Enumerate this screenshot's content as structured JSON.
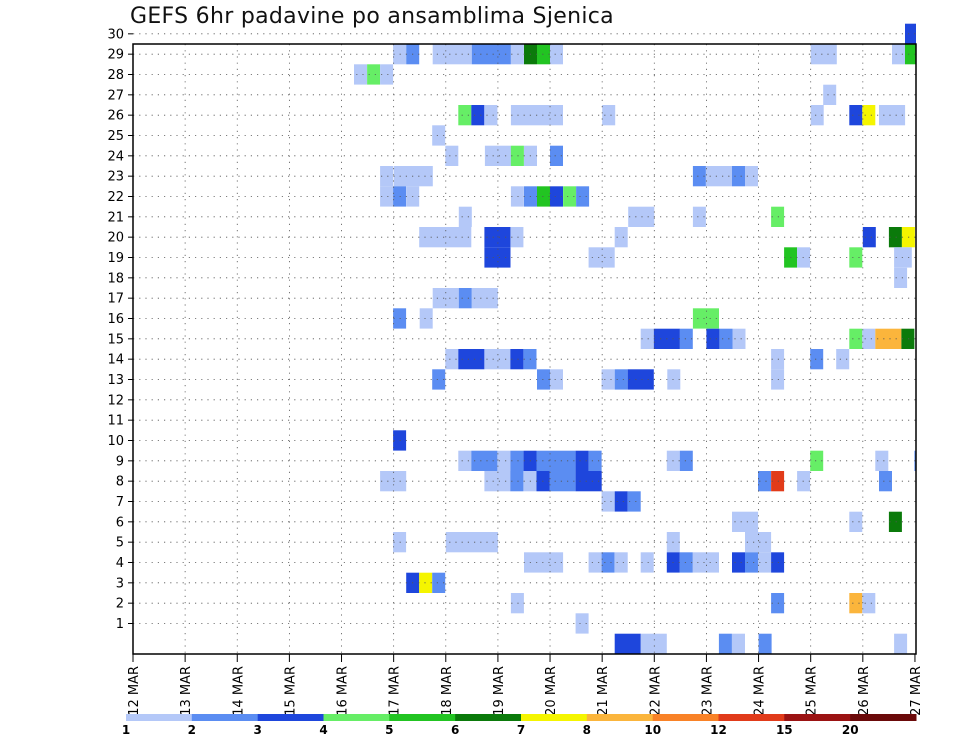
{
  "title": "GEFS 6hr padavine po ansamblima Sjenica",
  "chart_data": {
    "type": "heatmap",
    "title": "GEFS 6hr padavine po ansamblima Sjenica",
    "x_tick_labels": [
      "12 MAR",
      "13 MAR",
      "14 MAR",
      "15 MAR",
      "16 MAR",
      "17 MAR",
      "18 MAR",
      "19 MAR",
      "20 MAR",
      "21 MAR",
      "22 MAR",
      "23 MAR",
      "24 MAR",
      "25 MAR",
      "26 MAR",
      "27 MAR"
    ],
    "y_tick_labels": [
      "1",
      "2",
      "3",
      "4",
      "5",
      "6",
      "7",
      "8",
      "9",
      "10",
      "11",
      "12",
      "13",
      "14",
      "15",
      "16",
      "17",
      "18",
      "19",
      "20",
      "21",
      "22",
      "23",
      "24",
      "25",
      "26",
      "27",
      "28",
      "29",
      "30"
    ],
    "x_range_days": [
      0,
      15.2
    ],
    "y_range": [
      0,
      30
    ],
    "grid": true,
    "colorbar": {
      "boundaries": [
        "1",
        "2",
        "3",
        "4",
        "5",
        "6",
        "7",
        "8",
        "10",
        "12",
        "15",
        "20"
      ],
      "colors": [
        "#b4c8f8",
        "#5b8df2",
        "#1e46dc",
        "#66ee66",
        "#22c422",
        "#0b7a0b",
        "#f5f500",
        "#fbb53c",
        "#f98227",
        "#e13b1a",
        "#9b1313",
        "#6b0a0a"
      ]
    },
    "cells": [
      {
        "m": 30,
        "d": 14.81,
        "w": 0.25,
        "c": 3
      },
      {
        "m": 29,
        "d": 4.99,
        "w": 0.25,
        "c": 1
      },
      {
        "m": 29,
        "d": 5.24,
        "w": 0.25,
        "c": 2
      },
      {
        "m": 29,
        "d": 5.75,
        "w": 0.75,
        "c": 1
      },
      {
        "m": 29,
        "d": 6.5,
        "w": 0.75,
        "c": 2
      },
      {
        "m": 29,
        "d": 7.25,
        "w": 0.25,
        "c": 1
      },
      {
        "m": 29,
        "d": 7.5,
        "w": 0.25,
        "c": 6
      },
      {
        "m": 29,
        "d": 7.75,
        "w": 0.25,
        "c": 5
      },
      {
        "m": 29,
        "d": 8.0,
        "w": 0.25,
        "c": 1
      },
      {
        "m": 29,
        "d": 13.0,
        "w": 0.5,
        "c": 1
      },
      {
        "m": 29,
        "d": 14.56,
        "w": 0.25,
        "c": 1
      },
      {
        "m": 29,
        "d": 14.81,
        "w": 0.25,
        "c": 5
      },
      {
        "m": 29,
        "d": 15.06,
        "w": 0.14,
        "c": 2
      },
      {
        "m": 28,
        "d": 4.24,
        "w": 0.25,
        "c": 1
      },
      {
        "m": 28,
        "d": 4.49,
        "w": 0.25,
        "c": 4
      },
      {
        "m": 28,
        "d": 4.74,
        "w": 0.25,
        "c": 1
      },
      {
        "m": 27,
        "d": 13.24,
        "w": 0.25,
        "c": 1
      },
      {
        "m": 26,
        "d": 6.24,
        "w": 0.25,
        "c": 4
      },
      {
        "m": 26,
        "d": 6.49,
        "w": 0.25,
        "c": 3
      },
      {
        "m": 26,
        "d": 6.74,
        "w": 0.25,
        "c": 1
      },
      {
        "m": 26,
        "d": 7.25,
        "w": 0.75,
        "c": 1
      },
      {
        "m": 26,
        "d": 8.0,
        "w": 0.25,
        "c": 1
      },
      {
        "m": 26,
        "d": 9.0,
        "w": 0.25,
        "c": 1
      },
      {
        "m": 26,
        "d": 13.0,
        "w": 0.25,
        "c": 1
      },
      {
        "m": 26,
        "d": 13.74,
        "w": 0.25,
        "c": 3
      },
      {
        "m": 26,
        "d": 13.99,
        "w": 0.25,
        "c": 7
      },
      {
        "m": 26,
        "d": 14.31,
        "w": 0.5,
        "c": 1
      },
      {
        "m": 25,
        "d": 5.74,
        "w": 0.25,
        "c": 1
      },
      {
        "m": 24,
        "d": 5.99,
        "w": 0.25,
        "c": 1
      },
      {
        "m": 24,
        "d": 6.75,
        "w": 0.5,
        "c": 1
      },
      {
        "m": 24,
        "d": 7.25,
        "w": 0.25,
        "c": 4
      },
      {
        "m": 24,
        "d": 7.5,
        "w": 0.25,
        "c": 1
      },
      {
        "m": 24,
        "d": 8.0,
        "w": 0.25,
        "c": 2
      },
      {
        "m": 23,
        "d": 4.74,
        "w": 0.25,
        "c": 1
      },
      {
        "m": 23,
        "d": 5.0,
        "w": 0.75,
        "c": 1
      },
      {
        "m": 23,
        "d": 10.74,
        "w": 0.25,
        "c": 2
      },
      {
        "m": 23,
        "d": 10.99,
        "w": 0.5,
        "c": 1
      },
      {
        "m": 23,
        "d": 11.49,
        "w": 0.25,
        "c": 2
      },
      {
        "m": 23,
        "d": 11.74,
        "w": 0.25,
        "c": 1
      },
      {
        "m": 22,
        "d": 4.74,
        "w": 0.25,
        "c": 1
      },
      {
        "m": 22,
        "d": 4.99,
        "w": 0.25,
        "c": 2
      },
      {
        "m": 22,
        "d": 5.24,
        "w": 0.25,
        "c": 1
      },
      {
        "m": 22,
        "d": 7.25,
        "w": 0.25,
        "c": 1
      },
      {
        "m": 22,
        "d": 7.5,
        "w": 0.25,
        "c": 2
      },
      {
        "m": 22,
        "d": 7.75,
        "w": 0.25,
        "c": 5
      },
      {
        "m": 22,
        "d": 8.0,
        "w": 0.25,
        "c": 3
      },
      {
        "m": 22,
        "d": 8.25,
        "w": 0.25,
        "c": 4
      },
      {
        "m": 22,
        "d": 8.5,
        "w": 0.25,
        "c": 2
      },
      {
        "m": 21,
        "d": 6.25,
        "w": 0.25,
        "c": 1
      },
      {
        "m": 21,
        "d": 9.5,
        "w": 0.5,
        "c": 1
      },
      {
        "m": 21,
        "d": 10.74,
        "w": 0.25,
        "c": 1
      },
      {
        "m": 21,
        "d": 12.24,
        "w": 0.25,
        "c": 4
      },
      {
        "m": 20,
        "d": 5.49,
        "w": 1.0,
        "c": 1
      },
      {
        "m": 20,
        "d": 6.74,
        "w": 0.5,
        "c": 3
      },
      {
        "m": 20,
        "d": 7.24,
        "w": 0.25,
        "c": 1
      },
      {
        "m": 20,
        "d": 9.24,
        "w": 0.25,
        "c": 1
      },
      {
        "m": 20,
        "d": 14.0,
        "w": 0.25,
        "c": 3
      },
      {
        "m": 20,
        "d": 14.5,
        "w": 0.25,
        "c": 6
      },
      {
        "m": 20,
        "d": 14.75,
        "w": 0.25,
        "c": 7
      },
      {
        "m": 19,
        "d": 6.74,
        "w": 0.5,
        "c": 3
      },
      {
        "m": 19,
        "d": 8.74,
        "w": 0.5,
        "c": 1
      },
      {
        "m": 19,
        "d": 12.49,
        "w": 0.25,
        "c": 5
      },
      {
        "m": 19,
        "d": 12.74,
        "w": 0.25,
        "c": 1
      },
      {
        "m": 19,
        "d": 13.74,
        "w": 0.25,
        "c": 4
      },
      {
        "m": 19,
        "d": 14.6,
        "w": 0.34,
        "c": 1
      },
      {
        "m": 18,
        "d": 14.6,
        "w": 0.25,
        "c": 1
      },
      {
        "m": 17,
        "d": 5.75,
        "w": 0.5,
        "c": 1
      },
      {
        "m": 17,
        "d": 6.25,
        "w": 0.25,
        "c": 2
      },
      {
        "m": 17,
        "d": 6.5,
        "w": 0.5,
        "c": 1
      },
      {
        "m": 16,
        "d": 4.99,
        "w": 0.25,
        "c": 2
      },
      {
        "m": 16,
        "d": 5.5,
        "w": 0.25,
        "c": 1
      },
      {
        "m": 16,
        "d": 10.74,
        "w": 0.5,
        "c": 4
      },
      {
        "m": 15,
        "d": 9.74,
        "w": 0.25,
        "c": 1
      },
      {
        "m": 15,
        "d": 9.99,
        "w": 0.5,
        "c": 3
      },
      {
        "m": 15,
        "d": 10.49,
        "w": 0.25,
        "c": 2
      },
      {
        "m": 15,
        "d": 11.0,
        "w": 0.25,
        "c": 3
      },
      {
        "m": 15,
        "d": 11.25,
        "w": 0.25,
        "c": 2
      },
      {
        "m": 15,
        "d": 11.5,
        "w": 0.25,
        "c": 1
      },
      {
        "m": 15,
        "d": 13.74,
        "w": 0.25,
        "c": 4
      },
      {
        "m": 15,
        "d": 13.99,
        "w": 0.25,
        "c": 1
      },
      {
        "m": 15,
        "d": 14.24,
        "w": 0.5,
        "c": 8
      },
      {
        "m": 15,
        "d": 14.74,
        "w": 0.25,
        "c": 6
      },
      {
        "m": 14,
        "d": 5.99,
        "w": 0.25,
        "c": 1
      },
      {
        "m": 14,
        "d": 6.24,
        "w": 0.5,
        "c": 3
      },
      {
        "m": 14,
        "d": 6.74,
        "w": 0.5,
        "c": 1
      },
      {
        "m": 14,
        "d": 7.24,
        "w": 0.25,
        "c": 3
      },
      {
        "m": 14,
        "d": 7.49,
        "w": 0.25,
        "c": 2
      },
      {
        "m": 14,
        "d": 12.24,
        "w": 0.25,
        "c": 1
      },
      {
        "m": 14,
        "d": 12.99,
        "w": 0.25,
        "c": 2
      },
      {
        "m": 14,
        "d": 13.49,
        "w": 0.25,
        "c": 1
      },
      {
        "m": 13,
        "d": 5.74,
        "w": 0.25,
        "c": 2
      },
      {
        "m": 13,
        "d": 7.75,
        "w": 0.25,
        "c": 2
      },
      {
        "m": 13,
        "d": 8.0,
        "w": 0.25,
        "c": 1
      },
      {
        "m": 13,
        "d": 8.99,
        "w": 0.25,
        "c": 1
      },
      {
        "m": 13,
        "d": 9.24,
        "w": 0.25,
        "c": 2
      },
      {
        "m": 13,
        "d": 9.49,
        "w": 0.5,
        "c": 3
      },
      {
        "m": 13,
        "d": 10.25,
        "w": 0.25,
        "c": 1
      },
      {
        "m": 13,
        "d": 12.24,
        "w": 0.25,
        "c": 1
      },
      {
        "m": 10,
        "d": 4.99,
        "w": 0.25,
        "c": 3
      },
      {
        "m": 9,
        "d": 6.24,
        "w": 0.25,
        "c": 1
      },
      {
        "m": 9,
        "d": 6.49,
        "w": 0.5,
        "c": 2
      },
      {
        "m": 9,
        "d": 6.99,
        "w": 0.25,
        "c": 1
      },
      {
        "m": 9,
        "d": 7.24,
        "w": 0.25,
        "c": 2
      },
      {
        "m": 9,
        "d": 7.49,
        "w": 0.25,
        "c": 3
      },
      {
        "m": 9,
        "d": 7.74,
        "w": 0.75,
        "c": 2
      },
      {
        "m": 9,
        "d": 8.49,
        "w": 0.25,
        "c": 3
      },
      {
        "m": 9,
        "d": 8.74,
        "w": 0.25,
        "c": 2
      },
      {
        "m": 9,
        "d": 10.24,
        "w": 0.25,
        "c": 1
      },
      {
        "m": 9,
        "d": 10.49,
        "w": 0.25,
        "c": 2
      },
      {
        "m": 9,
        "d": 12.99,
        "w": 0.25,
        "c": 4
      },
      {
        "m": 9,
        "d": 14.24,
        "w": 0.25,
        "c": 1
      },
      {
        "m": 9,
        "d": 14.99,
        "w": 0.21,
        "c": 2
      },
      {
        "m": 8,
        "d": 4.74,
        "w": 0.5,
        "c": 1
      },
      {
        "m": 8,
        "d": 6.74,
        "w": 0.5,
        "c": 1
      },
      {
        "m": 8,
        "d": 7.24,
        "w": 0.25,
        "c": 2
      },
      {
        "m": 8,
        "d": 7.49,
        "w": 0.25,
        "c": 1
      },
      {
        "m": 8,
        "d": 7.74,
        "w": 0.25,
        "c": 3
      },
      {
        "m": 8,
        "d": 7.99,
        "w": 0.5,
        "c": 2
      },
      {
        "m": 8,
        "d": 8.49,
        "w": 0.5,
        "c": 3
      },
      {
        "m": 8,
        "d": 11.99,
        "w": 0.25,
        "c": 2
      },
      {
        "m": 8,
        "d": 12.24,
        "w": 0.25,
        "c": 10
      },
      {
        "m": 8,
        "d": 12.74,
        "w": 0.25,
        "c": 1
      },
      {
        "m": 8,
        "d": 14.31,
        "w": 0.25,
        "c": 2
      },
      {
        "m": 7,
        "d": 8.99,
        "w": 0.25,
        "c": 1
      },
      {
        "m": 7,
        "d": 9.24,
        "w": 0.25,
        "c": 3
      },
      {
        "m": 7,
        "d": 9.49,
        "w": 0.25,
        "c": 2
      },
      {
        "m": 6,
        "d": 11.49,
        "w": 0.5,
        "c": 1
      },
      {
        "m": 6,
        "d": 13.74,
        "w": 0.25,
        "c": 1
      },
      {
        "m": 6,
        "d": 14.5,
        "w": 0.25,
        "c": 6
      },
      {
        "m": 5,
        "d": 4.99,
        "w": 0.25,
        "c": 1
      },
      {
        "m": 5,
        "d": 6.0,
        "w": 1.0,
        "c": 1
      },
      {
        "m": 5,
        "d": 10.24,
        "w": 0.25,
        "c": 1
      },
      {
        "m": 5,
        "d": 11.74,
        "w": 0.5,
        "c": 1
      },
      {
        "m": 4,
        "d": 7.5,
        "w": 0.75,
        "c": 1
      },
      {
        "m": 4,
        "d": 8.74,
        "w": 0.25,
        "c": 1
      },
      {
        "m": 4,
        "d": 8.99,
        "w": 0.25,
        "c": 2
      },
      {
        "m": 4,
        "d": 9.24,
        "w": 0.25,
        "c": 1
      },
      {
        "m": 4,
        "d": 9.74,
        "w": 0.25,
        "c": 1
      },
      {
        "m": 4,
        "d": 10.24,
        "w": 0.25,
        "c": 3
      },
      {
        "m": 4,
        "d": 10.49,
        "w": 0.25,
        "c": 2
      },
      {
        "m": 4,
        "d": 10.74,
        "w": 0.5,
        "c": 1
      },
      {
        "m": 4,
        "d": 11.49,
        "w": 0.25,
        "c": 3
      },
      {
        "m": 4,
        "d": 11.74,
        "w": 0.25,
        "c": 2
      },
      {
        "m": 4,
        "d": 11.99,
        "w": 0.25,
        "c": 1
      },
      {
        "m": 4,
        "d": 12.24,
        "w": 0.25,
        "c": 3
      },
      {
        "m": 3,
        "d": 5.24,
        "w": 0.25,
        "c": 3
      },
      {
        "m": 3,
        "d": 5.49,
        "w": 0.25,
        "c": 7
      },
      {
        "m": 3,
        "d": 5.74,
        "w": 0.25,
        "c": 2
      },
      {
        "m": 2,
        "d": 7.25,
        "w": 0.25,
        "c": 1
      },
      {
        "m": 2,
        "d": 12.24,
        "w": 0.25,
        "c": 2
      },
      {
        "m": 2,
        "d": 13.74,
        "w": 0.25,
        "c": 8
      },
      {
        "m": 2,
        "d": 13.99,
        "w": 0.25,
        "c": 1
      },
      {
        "m": 1,
        "d": 8.49,
        "w": 0.25,
        "c": 1
      },
      {
        "m": 0,
        "d": 9.24,
        "w": 0.5,
        "c": 3
      },
      {
        "m": 0,
        "d": 9.74,
        "w": 0.5,
        "c": 1
      },
      {
        "m": 0,
        "d": 11.24,
        "w": 0.25,
        "c": 2
      },
      {
        "m": 0,
        "d": 11.49,
        "w": 0.25,
        "c": 1
      },
      {
        "m": 0,
        "d": 12.0,
        "w": 0.25,
        "c": 2
      },
      {
        "m": 0,
        "d": 14.6,
        "w": 0.25,
        "c": 1
      }
    ]
  }
}
